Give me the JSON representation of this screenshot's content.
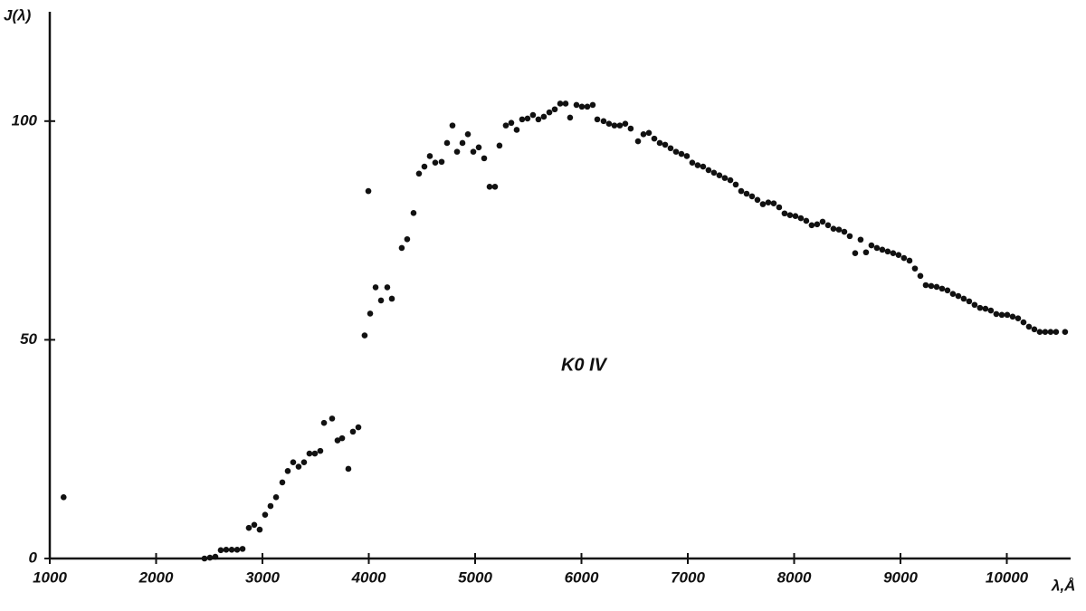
{
  "chart_data": {
    "type": "scatter",
    "y_label": "J(λ)",
    "x_label": "λ,Å",
    "annotation": "K0 IV",
    "color": "#111111",
    "xlim": [
      1000,
      10600
    ],
    "ylim": [
      0,
      125
    ],
    "xticks": [
      1000,
      2000,
      3000,
      4000,
      5000,
      6000,
      7000,
      8000,
      9000,
      10000
    ],
    "yticks": [
      0,
      50,
      100
    ],
    "series": [
      {
        "name": "K0 IV",
        "x": [
          1130,
          2455,
          2506,
          2557,
          2608,
          2659,
          2711,
          2762,
          2813,
          2872,
          2923,
          2974,
          3025,
          3076,
          3128,
          3187,
          3238,
          3289,
          3340,
          3391,
          3442,
          3493,
          3544,
          3579,
          3655,
          3706,
          3749,
          3808,
          3851,
          3902,
          3961,
          3996,
          4013,
          4064,
          4115,
          4174,
          4217,
          4310,
          4361,
          4421,
          4472,
          4523,
          4574,
          4625,
          4685,
          4736,
          4787,
          4830,
          4881,
          4932,
          4983,
          5034,
          5085,
          5136,
          5187,
          5229,
          5289,
          5340,
          5391,
          5442,
          5493,
          5544,
          5595,
          5646,
          5698,
          5749,
          5800,
          5851,
          5893,
          5953,
          6004,
          6055,
          6106,
          6149,
          6208,
          6259,
          6310,
          6361,
          6412,
          6463,
          6532,
          6583,
          6634,
          6685,
          6736,
          6787,
          6838,
          6889,
          6940,
          6991,
          7042,
          7093,
          7144,
          7195,
          7246,
          7297,
          7348,
          7400,
          7451,
          7502,
          7553,
          7604,
          7655,
          7706,
          7757,
          7808,
          7859,
          7910,
          7961,
          8012,
          8063,
          8114,
          8165,
          8216,
          8268,
          8319,
          8370,
          8421,
          8472,
          8523,
          8574,
          8625,
          8676,
          8727,
          8778,
          8829,
          8880,
          8931,
          8982,
          9033,
          9085,
          9136,
          9187,
          9238,
          9289,
          9340,
          9391,
          9442,
          9493,
          9544,
          9595,
          9646,
          9697,
          9748,
          9799,
          9850,
          9901,
          9953,
          10004,
          10055,
          10106,
          10157,
          10208,
          10259,
          10310,
          10361,
          10412,
          10463,
          10548
        ],
        "values": [
          14,
          0,
          0.2,
          0.4,
          1.9,
          2,
          2,
          2,
          2.2,
          7,
          7.7,
          6.6,
          10,
          12,
          14,
          17.4,
          20,
          22,
          21,
          22,
          24,
          24,
          24.6,
          31,
          32,
          27,
          27.5,
          20.5,
          29,
          30,
          51,
          84,
          56,
          62,
          59,
          62,
          59.4,
          71,
          73,
          79,
          88,
          89.6,
          92,
          90.5,
          90.7,
          95,
          99,
          93,
          95,
          97,
          93,
          94,
          91.5,
          85,
          85,
          94.4,
          99,
          99.6,
          98,
          100.4,
          100.6,
          101.4,
          100.4,
          101,
          102,
          102.7,
          104,
          104,
          100.8,
          103.7,
          103.3,
          103.3,
          103.7,
          100.4,
          100,
          99.4,
          99,
          99,
          99.4,
          98.3,
          95.4,
          97,
          97.3,
          96,
          95,
          94.6,
          93.8,
          93,
          92.5,
          92,
          90.5,
          89.9,
          89.6,
          88.8,
          88.2,
          87.6,
          87,
          86.5,
          85.5,
          84,
          83.4,
          82.8,
          82,
          81,
          81.4,
          81.2,
          80.3,
          78.9,
          78.5,
          78.3,
          77.8,
          77.2,
          76.2,
          76.4,
          77,
          76.2,
          75.4,
          75.2,
          74.7,
          73.7,
          69.8,
          72.9,
          70,
          71.6,
          71,
          70.6,
          70.2,
          69.8,
          69.4,
          68.7,
          68.1,
          66.3,
          64.6,
          62.5,
          62.3,
          62.1,
          61.7,
          61.3,
          60.5,
          60,
          59.4,
          58.8,
          58,
          57.3,
          57.1,
          56.7,
          55.9,
          55.7,
          55.7,
          55.3,
          54.9,
          54,
          53,
          52.4,
          51.8,
          51.8,
          51.8,
          51.8,
          51.8
        ]
      }
    ]
  }
}
